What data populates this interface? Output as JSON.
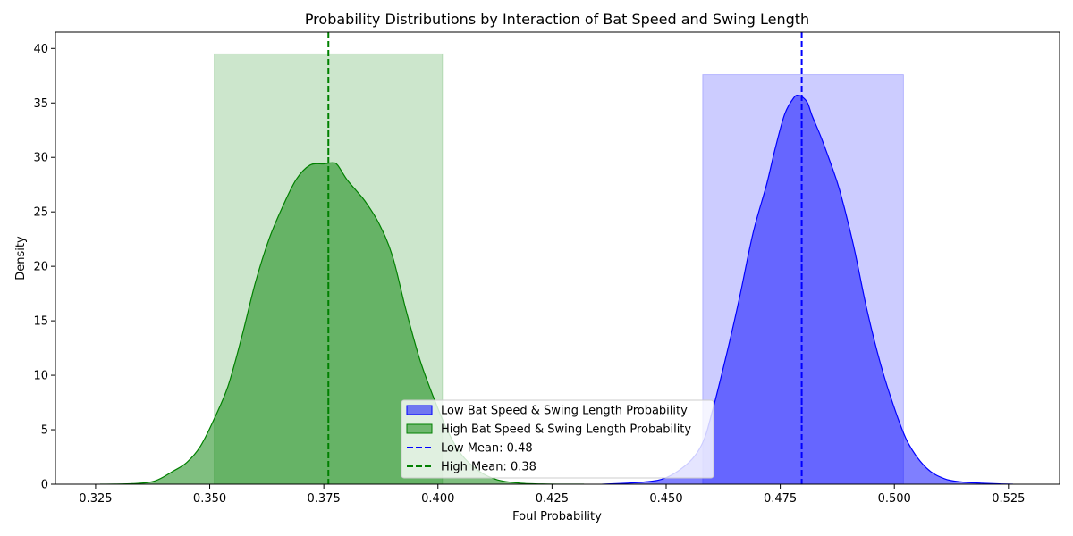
{
  "chart_data": {
    "type": "area",
    "title": "Probability Distributions by Interaction of Bat Speed and Swing Length",
    "xlabel": "Foul Probability",
    "ylabel": "Density",
    "xlim": [
      0.3162,
      0.5362
    ],
    "ylim": [
      0,
      41.5
    ],
    "xticks": [
      0.325,
      0.35,
      0.375,
      0.4,
      0.425,
      0.45,
      0.475,
      0.5,
      0.525
    ],
    "xtick_labels": [
      "0.325",
      "0.350",
      "0.375",
      "0.400",
      "0.425",
      "0.450",
      "0.475",
      "0.500",
      "0.525"
    ],
    "yticks": [
      0,
      5,
      10,
      15,
      20,
      25,
      30,
      35,
      40
    ],
    "ytick_labels": [
      "0",
      "5",
      "10",
      "15",
      "20",
      "25",
      "30",
      "35",
      "40"
    ],
    "grid": false,
    "legend_position": "bottom-center",
    "series": [
      {
        "name": "Low Bat Speed & Swing Length Probability",
        "kind": "kde",
        "color": "#0000ff",
        "x": [
          0.436,
          0.445,
          0.45,
          0.455,
          0.458,
          0.46,
          0.463,
          0.466,
          0.469,
          0.472,
          0.474,
          0.476,
          0.478,
          0.479,
          0.48,
          0.481,
          0.482,
          0.484,
          0.486,
          0.488,
          0.491,
          0.494,
          0.497,
          0.5,
          0.503,
          0.507,
          0.511,
          0.515,
          0.519,
          0.523,
          0.526
        ],
        "y": [
          0,
          0.2,
          0.6,
          2.0,
          3.8,
          6.5,
          11.5,
          17.0,
          23.0,
          27.5,
          31.0,
          34.0,
          35.5,
          35.7,
          35.5,
          35.0,
          33.8,
          31.8,
          29.5,
          27.0,
          22.0,
          16.0,
          11.0,
          7.0,
          3.8,
          1.5,
          0.5,
          0.2,
          0.1,
          0.03,
          0
        ]
      },
      {
        "name": "High Bat Speed & Swing Length Probability",
        "kind": "kde",
        "color": "#008000",
        "x": [
          0.326,
          0.333,
          0.338,
          0.342,
          0.345,
          0.348,
          0.351,
          0.354,
          0.357,
          0.36,
          0.363,
          0.366,
          0.369,
          0.372,
          0.375,
          0.377,
          0.378,
          0.38,
          0.382,
          0.384,
          0.387,
          0.39,
          0.393,
          0.396,
          0.399,
          0.402,
          0.405,
          0.409,
          0.413,
          0.418,
          0.424,
          0.432
        ],
        "y": [
          0,
          0.05,
          0.3,
          1.2,
          2.0,
          3.5,
          6.0,
          9.0,
          13.5,
          18.5,
          22.5,
          25.5,
          28.0,
          29.3,
          29.4,
          29.5,
          29.3,
          28.0,
          27.0,
          26.0,
          24.0,
          21.0,
          16.0,
          11.5,
          8.0,
          5.0,
          2.8,
          1.2,
          0.4,
          0.1,
          0.02,
          0
        ]
      },
      {
        "name": "Low interval band",
        "kind": "band",
        "color": "#0000ff",
        "x_range": [
          0.458,
          0.502
        ],
        "height": 37.6
      },
      {
        "name": "High interval band",
        "kind": "band",
        "color": "#008000",
        "x_range": [
          0.351,
          0.401
        ],
        "height": 39.5
      },
      {
        "name": "Low Mean: 0.48",
        "kind": "vline",
        "color": "#0000ff",
        "x": 0.4797
      },
      {
        "name": "High Mean: 0.38",
        "kind": "vline",
        "color": "#008000",
        "x": 0.376
      }
    ],
    "legend": [
      {
        "label": "Low Bat Speed & Swing Length Probability",
        "kind": "patch",
        "color": "#0000ff"
      },
      {
        "label": "High Bat Speed & Swing Length Probability",
        "kind": "patch",
        "color": "#008000"
      },
      {
        "label": "Low Mean: 0.48",
        "kind": "dashed-line",
        "color": "#0000ff"
      },
      {
        "label": "High Mean: 0.38",
        "kind": "dashed-line",
        "color": "#008000"
      }
    ]
  }
}
